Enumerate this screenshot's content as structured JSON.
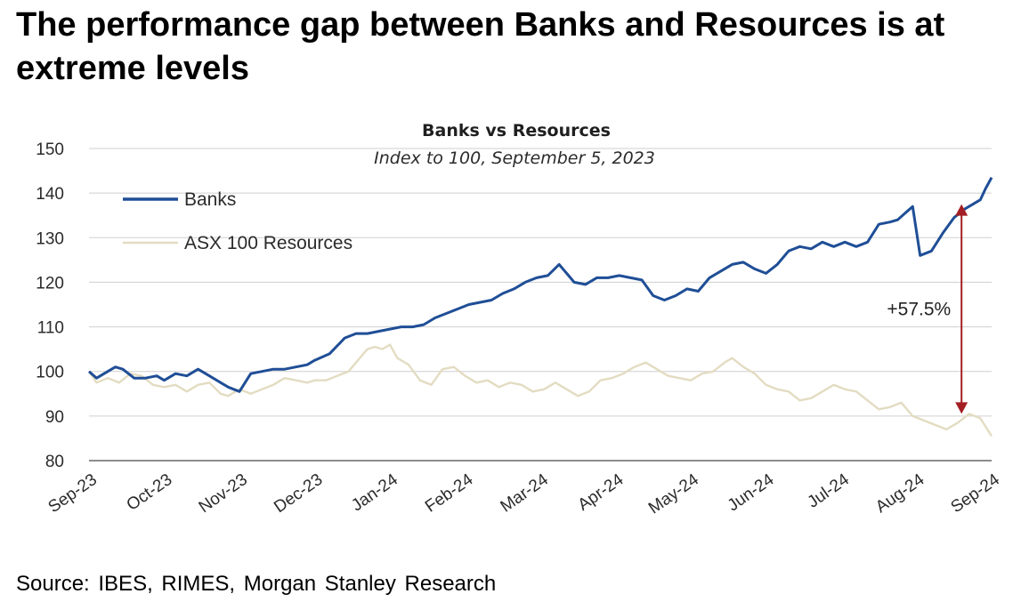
{
  "headline": "The performance gap between Banks and Resources is at extreme levels",
  "source": "Source: IBES, RIMES, Morgan Stanley Research",
  "chart_data": {
    "type": "line",
    "title": "Banks vs Resources",
    "subtitle": "Index to 100, September 5, 2023",
    "xlabel": "",
    "ylabel": "",
    "ylim": [
      80,
      150
    ],
    "yticks": [
      80,
      90,
      100,
      110,
      120,
      130,
      140,
      150
    ],
    "xlim": [
      0,
      12
    ],
    "x_tick_labels": [
      "Sep-23",
      "Oct-23",
      "Nov-23",
      "Dec-23",
      "Jan-24",
      "Feb-24",
      "Mar-24",
      "Apr-24",
      "May-24",
      "Jun-24",
      "Jul-24",
      "Aug-24",
      "Sep-24"
    ],
    "grid": "horizontal",
    "legend_position": "top-left",
    "series": [
      {
        "name": "Banks",
        "color": "#1f4e96",
        "x": [
          0,
          0.1,
          0.25,
          0.35,
          0.45,
          0.6,
          0.75,
          0.9,
          1.0,
          1.15,
          1.3,
          1.45,
          1.6,
          1.75,
          1.85,
          2.0,
          2.15,
          2.3,
          2.45,
          2.6,
          2.75,
          2.9,
          3.0,
          3.2,
          3.4,
          3.55,
          3.7,
          3.85,
          4.0,
          4.15,
          4.3,
          4.45,
          4.6,
          4.75,
          4.9,
          5.05,
          5.2,
          5.35,
          5.5,
          5.65,
          5.8,
          5.95,
          6.1,
          6.25,
          6.35,
          6.45,
          6.6,
          6.75,
          6.9,
          7.05,
          7.2,
          7.35,
          7.5,
          7.65,
          7.8,
          7.95,
          8.1,
          8.25,
          8.4,
          8.55,
          8.7,
          8.85,
          9.0,
          9.15,
          9.3,
          9.45,
          9.6,
          9.75,
          9.9,
          10.05,
          10.2,
          10.35,
          10.5,
          10.65,
          10.75,
          10.85,
          10.95,
          11.05,
          11.2,
          11.35,
          11.5,
          11.65,
          11.75,
          11.85,
          11.92,
          12.0
        ],
        "values": [
          100,
          98.5,
          100,
          101,
          100.5,
          98.5,
          98.5,
          99,
          98,
          99.5,
          99,
          100.5,
          99,
          97.5,
          96.5,
          95.5,
          99.5,
          100,
          100.5,
          100.5,
          101,
          101.5,
          102.5,
          104,
          107.5,
          108.5,
          108.5,
          109,
          109.5,
          110,
          110,
          110.5,
          112,
          113,
          114,
          115,
          115.5,
          116,
          117.5,
          118.5,
          120,
          121,
          121.5,
          124,
          122,
          120,
          119.5,
          121,
          121,
          121.5,
          121,
          120.5,
          117,
          116,
          117,
          118.5,
          118,
          121,
          122.5,
          124,
          124.5,
          123,
          122,
          124,
          127,
          128,
          127.5,
          129,
          128,
          129,
          128,
          129,
          133,
          133.5,
          134,
          135.5,
          137,
          126,
          127,
          131,
          134.5,
          136.5,
          137.5,
          138.5,
          141,
          143.5
        ]
      },
      {
        "name": "ASX 100 Resources",
        "color": "#e3dcc2",
        "x": [
          0,
          0.1,
          0.25,
          0.4,
          0.55,
          0.7,
          0.85,
          1.0,
          1.15,
          1.3,
          1.45,
          1.6,
          1.75,
          1.85,
          2.0,
          2.15,
          2.3,
          2.45,
          2.6,
          2.75,
          2.9,
          3.0,
          3.15,
          3.3,
          3.45,
          3.6,
          3.7,
          3.8,
          3.9,
          4.0,
          4.1,
          4.25,
          4.4,
          4.55,
          4.7,
          4.85,
          5.0,
          5.15,
          5.3,
          5.45,
          5.6,
          5.75,
          5.9,
          6.05,
          6.2,
          6.35,
          6.5,
          6.65,
          6.8,
          6.95,
          7.1,
          7.25,
          7.4,
          7.55,
          7.7,
          7.85,
          8.0,
          8.15,
          8.3,
          8.45,
          8.55,
          8.7,
          8.85,
          9.0,
          9.15,
          9.3,
          9.45,
          9.6,
          9.75,
          9.9,
          10.05,
          10.2,
          10.35,
          10.5,
          10.65,
          10.8,
          10.95,
          11.1,
          11.25,
          11.4,
          11.55,
          11.7,
          11.85,
          12.0
        ],
        "values": [
          100,
          97.5,
          98.5,
          97.5,
          99.5,
          99,
          97,
          96.5,
          97,
          95.5,
          97,
          97.5,
          95,
          94.5,
          96,
          95,
          96,
          97,
          98.5,
          98,
          97.5,
          98,
          98,
          99,
          100,
          103,
          105,
          105.5,
          105,
          106,
          103,
          101.5,
          98,
          97,
          100.5,
          101,
          99,
          97.5,
          98,
          96.5,
          97.5,
          97,
          95.5,
          96,
          97.5,
          96,
          94.5,
          95.5,
          98,
          98.5,
          99.5,
          101,
          102,
          100.5,
          99,
          98.5,
          98,
          99.5,
          100,
          102,
          103,
          101,
          99.5,
          97,
          96,
          95.5,
          93.5,
          94,
          95.5,
          97,
          96,
          95.5,
          93.5,
          91.5,
          92,
          93,
          90,
          89,
          88,
          87,
          88.5,
          90.5,
          89.5,
          85.5
        ]
      }
    ],
    "annotation": {
      "label": "+57.5%",
      "x": 11.6,
      "from": 90.5,
      "to": 137.5,
      "color": "#a31f24"
    }
  }
}
